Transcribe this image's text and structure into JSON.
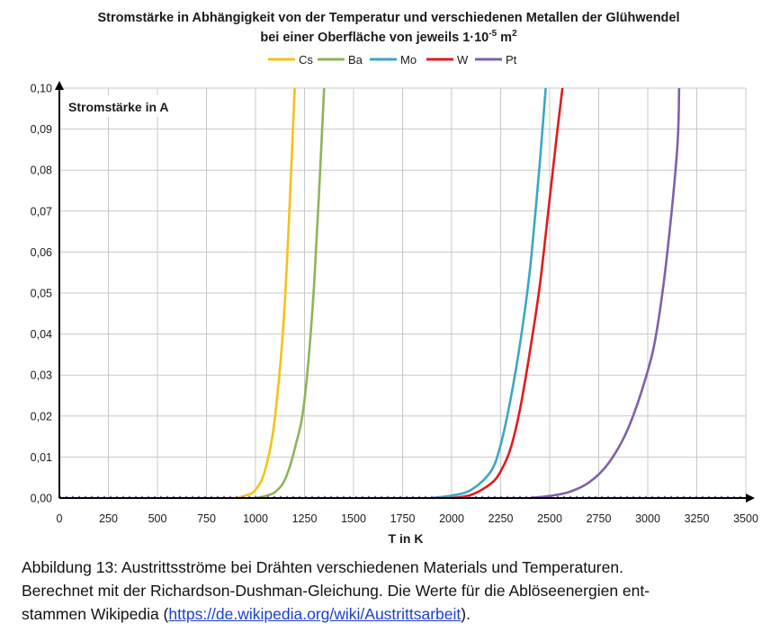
{
  "chart_data": {
    "type": "line",
    "title_line1": "Stromstärke in Abhängigkeit von der Temperatur und verschiedenen Metallen der Glühwendel",
    "title_line2": "bei einer Oberfläche von jeweils 1·10",
    "title_exp": "-5",
    "title_unit": " m",
    "title_unit_exp": "2",
    "xlabel": "T in K",
    "ylabel": "Stromstärke in A",
    "xlim": [
      0,
      3500
    ],
    "ylim": [
      0,
      0.1
    ],
    "x_ticks": [
      "0",
      "250",
      "500",
      "750",
      "1000",
      "1250",
      "1500",
      "1750",
      "2000",
      "2250",
      "2500",
      "2750",
      "3000",
      "3250",
      "3500"
    ],
    "y_ticks": [
      "0,00",
      "0,01",
      "0,02",
      "0,03",
      "0,04",
      "0,05",
      "0,06",
      "0,07",
      "0,08",
      "0,09",
      "0,10"
    ],
    "grid": true,
    "legend_position": "top",
    "series": [
      {
        "name": "Cs",
        "color": "#f5c218",
        "x": [
          900,
          950,
          1000,
          1050,
          1100,
          1150,
          1200
        ],
        "y": [
          0.0,
          0.0006,
          0.002,
          0.007,
          0.02,
          0.048,
          0.1
        ]
      },
      {
        "name": "Ba",
        "color": "#8db45a",
        "x": [
          1000,
          1050,
          1100,
          1150,
          1200,
          1250,
          1300,
          1350
        ],
        "y": [
          0.0,
          0.0005,
          0.0015,
          0.0045,
          0.012,
          0.024,
          0.053,
          0.1
        ]
      },
      {
        "name": "Mo",
        "color": "#3ba7c4",
        "x": [
          1900,
          2000,
          2100,
          2200,
          2250,
          2300,
          2350,
          2400,
          2450,
          2480
        ],
        "y": [
          0.0,
          0.0006,
          0.002,
          0.0065,
          0.013,
          0.024,
          0.038,
          0.056,
          0.082,
          0.1
        ]
      },
      {
        "name": "W",
        "color": "#e01b1b",
        "x": [
          2000,
          2100,
          2200,
          2250,
          2300,
          2350,
          2400,
          2450,
          2500,
          2540,
          2565
        ],
        "y": [
          0.0,
          0.0008,
          0.0035,
          0.0065,
          0.012,
          0.022,
          0.036,
          0.052,
          0.073,
          0.09,
          0.1
        ]
      },
      {
        "name": "Pt",
        "color": "#8060a8",
        "x": [
          2400,
          2500,
          2600,
          2700,
          2800,
          2900,
          3000,
          3050,
          3100,
          3150,
          3160
        ],
        "y": [
          0.0,
          0.0005,
          0.0015,
          0.0038,
          0.0085,
          0.017,
          0.031,
          0.042,
          0.06,
          0.085,
          0.1
        ]
      }
    ]
  },
  "caption": {
    "line1": "Abbildung 13: Austrittsströme bei Drähten verschiedenen Materials und Temperaturen.",
    "line2": "Berechnet mit der Richardson-Dushman-Gleichung. Die Werte für die Ablöseenergien ent-",
    "line3_prefix": "stammen Wikipedia (",
    "link": "https://de.wikipedia.org/wiki/Austrittsarbeit",
    "line3_suffix": ")."
  }
}
